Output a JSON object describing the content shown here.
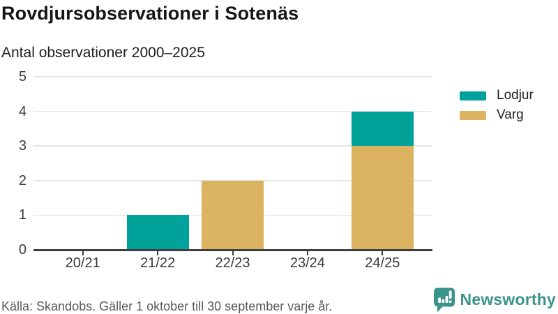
{
  "header": {
    "title": "Rovdjursobservationer i Sotenäs",
    "subtitle": "Antal observationer 2000–2025"
  },
  "chart_data": {
    "type": "bar",
    "stacked": true,
    "title": "Rovdjursobservationer i Sotenäs",
    "subtitle": "Antal observationer 2000–2025",
    "categories": [
      "20/21",
      "21/22",
      "22/23",
      "23/24",
      "24/25"
    ],
    "series": [
      {
        "name": "Lodjur",
        "color": "#00a29a",
        "values": [
          0,
          1,
          0,
          0,
          1
        ]
      },
      {
        "name": "Varg",
        "color": "#dcb361",
        "values": [
          0,
          0,
          2,
          0,
          3
        ]
      }
    ],
    "stack_order_bottom_to_top": [
      "Varg",
      "Lodjur"
    ],
    "totals": [
      0,
      1,
      2,
      0,
      4
    ],
    "xlabel": "",
    "ylabel": "",
    "ylim": [
      0,
      5
    ],
    "yticks": [
      0,
      1,
      2,
      3,
      4,
      5
    ],
    "grid": true,
    "legend_position": "right"
  },
  "footer": {
    "source": "Källa: Skandobs. Gäller 1 oktober till 30 september varje år.",
    "logo_text": "Newsworthy"
  },
  "colors": {
    "lodjur": "#00a29a",
    "varg": "#dcb361",
    "brand": "#3b948b",
    "grid": "#e4e4e4",
    "axis": "#3f3f3f",
    "source_text": "#5a5a5a"
  }
}
